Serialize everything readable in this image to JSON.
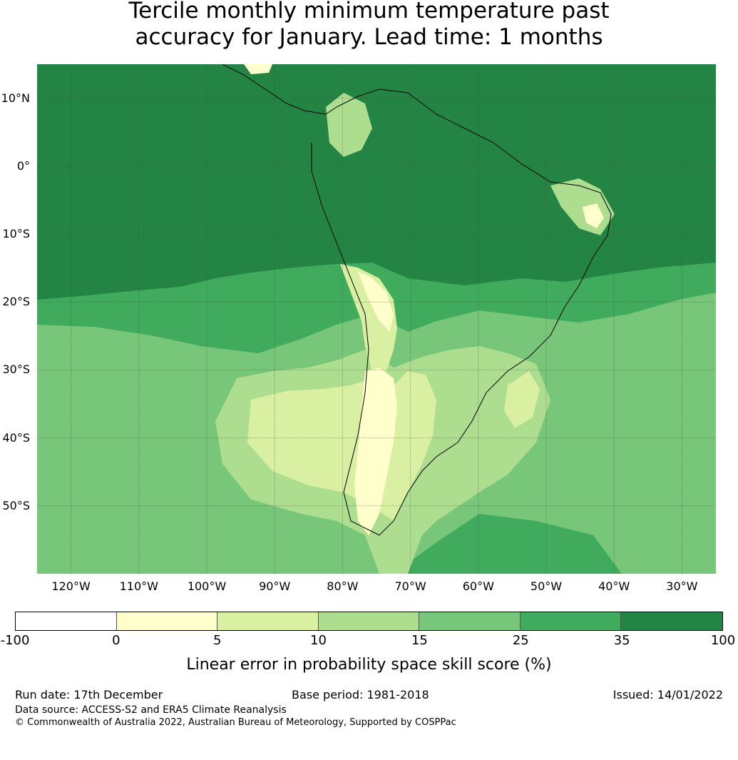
{
  "title": {
    "line1": "Tercile monthly minimum temperature past",
    "line2": "accuracy for January. Lead time: 1 months"
  },
  "map": {
    "lat_labels": [
      "10°N",
      "0°",
      "10°S",
      "20°S",
      "30°S",
      "40°S",
      "50°S"
    ],
    "lon_labels": [
      "120°W",
      "110°W",
      "100°W",
      "90°W",
      "80°W",
      "70°W",
      "60°W",
      "50°W",
      "40°W",
      "30°W"
    ],
    "extent": {
      "lon_min": -125,
      "lon_max": -25,
      "lat_min": -60,
      "lat_max": 15
    }
  },
  "colorbar": {
    "ticks": [
      "-100",
      "0",
      "5",
      "10",
      "15",
      "25",
      "35",
      "100"
    ],
    "colors": [
      "#ffffff",
      "#ffffcc",
      "#d9f0a3",
      "#addd8e",
      "#78c679",
      "#41ab5d",
      "#238443"
    ],
    "label": "Linear error in probability space skill score (%)"
  },
  "footer": {
    "run_date": "Run date: 17th December",
    "base_period": "Base period: 1981-2018",
    "issued": "Issued: 14/01/2022",
    "data_source": "Data source: ACCESS-S2 and ERA5 Climate Reanalysis",
    "copyright": "© Commonwealth of Australia 2022, Australian Bureau of Meteorology, Supported by COSPPac"
  }
}
